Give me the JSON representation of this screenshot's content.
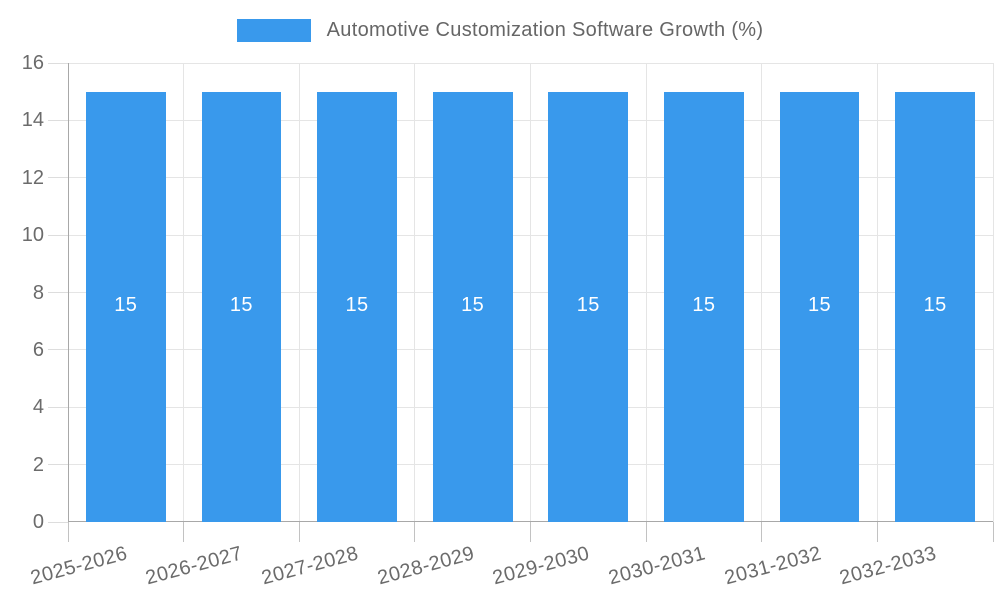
{
  "legend": {
    "label": "Automotive Customization Software Growth (%)"
  },
  "chart_data": {
    "type": "bar",
    "title": "Automotive Customization Software Growth (%)",
    "categories": [
      "2025-2026",
      "2026-2027",
      "2027-2028",
      "2028-2029",
      "2029-2030",
      "2030-2031",
      "2031-2032",
      "2032-2033"
    ],
    "values": [
      15,
      15,
      15,
      15,
      15,
      15,
      15,
      15
    ],
    "bar_value_labels": [
      "15",
      "15",
      "15",
      "15",
      "15",
      "15",
      "15",
      "15"
    ],
    "xlabel": "",
    "ylabel": "",
    "ylim": [
      0,
      16
    ],
    "ytick_step": 2,
    "ytick_labels": [
      "0",
      "2",
      "4",
      "6",
      "8",
      "10",
      "12",
      "14",
      "16"
    ],
    "grid": true,
    "legend_position": "top",
    "value_label_position": "center",
    "x_label_rotation_deg": -15,
    "colors": {
      "bar": "#3999EC",
      "gridline": "#E5E5E5",
      "axis_border": "#A8A8A8",
      "tick_text": "#6B6B6B",
      "legend_text": "#666666",
      "bar_value_text": "#FFFFFF",
      "background": "#FFFFFF"
    }
  }
}
